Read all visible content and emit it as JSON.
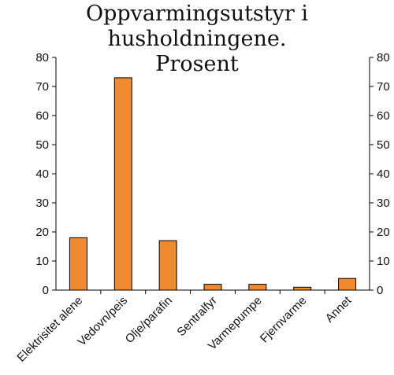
{
  "chart_data": {
    "type": "bar",
    "title": "Oppvarmingsutstyr i husholdningene.",
    "subtitle": "Prosent",
    "categories": [
      "Elektrisitet alene",
      "Vedovn/peis",
      "Olje/parafin",
      "Sentralfyr",
      "Varmepumpe",
      "Fjernvarme",
      "Annet"
    ],
    "values": [
      18,
      73,
      17,
      2,
      2,
      1,
      4
    ],
    "ylim": [
      0,
      80
    ],
    "yticks": [
      "0",
      "10",
      "20",
      "30",
      "40",
      "50",
      "60",
      "70",
      "80"
    ],
    "grid": false,
    "bar_color": "#f08a30",
    "bar_stroke": "#000000",
    "right_axis_mirrored": true
  }
}
